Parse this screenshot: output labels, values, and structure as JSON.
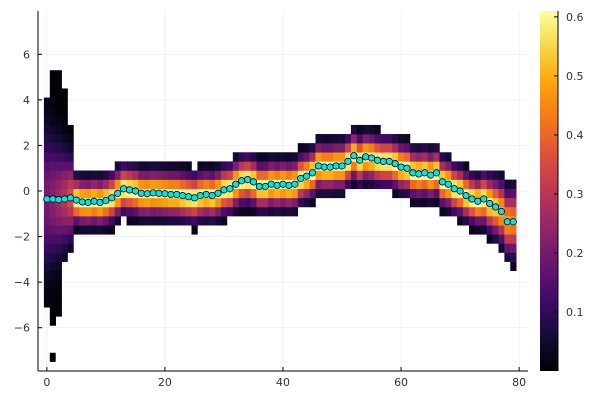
{
  "chart_data": {
    "type": "heatmap",
    "title": "",
    "xlabel": "",
    "ylabel": "",
    "xlim": [
      -1.5,
      81.5
    ],
    "ylim": [
      -7.9,
      7.9
    ],
    "x_ticks": [
      0,
      20,
      40,
      60,
      80
    ],
    "y_ticks": [
      -6,
      -4,
      -2,
      0,
      2,
      4,
      6
    ],
    "grid": true,
    "legend": "none",
    "colorbar": {
      "colormap": "inferno",
      "range": [
        0.0,
        0.61
      ],
      "ticks": [
        0.1,
        0.2,
        0.3,
        0.4,
        0.5,
        0.6
      ],
      "tick_labels": [
        "0.1",
        "0.2",
        "0.3",
        "0.4",
        "0.5",
        "0.6"
      ]
    },
    "heatmap_grid": {
      "x_start": 0,
      "x_step": 1,
      "y_bin_edges_start": -7.5,
      "y_bin_height": 0.4
    },
    "mean_series": {
      "marker_color": "#00e5e5",
      "x": [
        0,
        1,
        2,
        3,
        4,
        5,
        6,
        7,
        8,
        9,
        10,
        11,
        12,
        13,
        14,
        15,
        16,
        17,
        18,
        19,
        20,
        21,
        22,
        23,
        24,
        25,
        26,
        27,
        28,
        29,
        30,
        31,
        32,
        33,
        34,
        35,
        36,
        37,
        38,
        39,
        40,
        41,
        42,
        43,
        44,
        45,
        46,
        47,
        48,
        49,
        50,
        51,
        52,
        53,
        54,
        55,
        56,
        57,
        58,
        59,
        60,
        61,
        62,
        63,
        64,
        65,
        66,
        67,
        68,
        69,
        70,
        71,
        72,
        73,
        74,
        75,
        76,
        77,
        78,
        79
      ],
      "y": [
        -0.35,
        -0.35,
        -0.38,
        -0.35,
        -0.3,
        -0.4,
        -0.48,
        -0.5,
        -0.45,
        -0.5,
        -0.42,
        -0.3,
        -0.1,
        0.1,
        0.05,
        0.0,
        -0.1,
        -0.12,
        -0.08,
        -0.1,
        -0.12,
        -0.15,
        -0.15,
        -0.2,
        -0.25,
        -0.3,
        -0.2,
        -0.15,
        -0.2,
        -0.1,
        0.05,
        0.1,
        0.3,
        0.45,
        0.5,
        0.4,
        0.2,
        0.2,
        0.3,
        0.25,
        0.3,
        0.25,
        0.3,
        0.55,
        0.65,
        0.8,
        1.1,
        1.05,
        1.05,
        1.1,
        1.1,
        1.3,
        1.55,
        1.35,
        1.5,
        1.45,
        1.35,
        1.3,
        1.3,
        1.2,
        1.05,
        1.0,
        0.8,
        0.75,
        0.8,
        0.7,
        0.8,
        0.4,
        0.3,
        0.1,
        0.0,
        -0.2,
        -0.35,
        -0.45,
        -0.35,
        -0.55,
        -0.7,
        -0.9,
        -1.35,
        -1.35
      ]
    }
  }
}
